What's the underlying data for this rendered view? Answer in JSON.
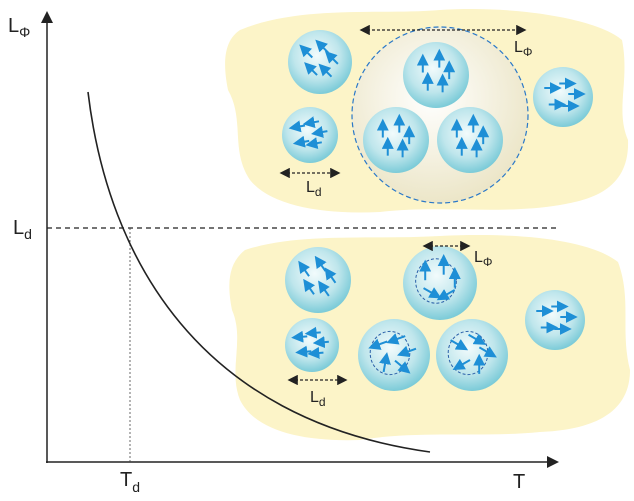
{
  "axes": {
    "y_label": {
      "base": "L",
      "sub": "Φ"
    },
    "x_label": {
      "base": "T"
    },
    "y_marker": {
      "base": "L",
      "sub": "d"
    },
    "x_marker": {
      "base": "T",
      "sub": "d"
    }
  },
  "top_panel": {
    "coherence_label": {
      "base": "L",
      "sub": "Φ"
    },
    "domain_label": {
      "base": "L",
      "sub": "d"
    }
  },
  "bottom_panel": {
    "coherence_label": {
      "base": "L",
      "sub": "Φ"
    },
    "domain_label": {
      "base": "L",
      "sub": "d"
    }
  }
}
